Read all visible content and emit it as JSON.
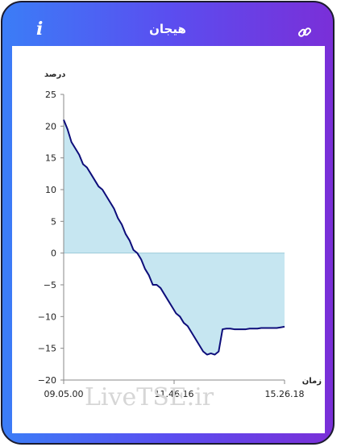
{
  "header": {
    "title": "هیجان",
    "info_icon": "i",
    "link_icon": "link-icon"
  },
  "watermark": "LiveTSE.ir",
  "colors": {
    "gradient_start": "#3b7df7",
    "gradient_end": "#7a2fd8",
    "line": "#0d0d7a",
    "area": "#c6e6f1"
  },
  "chart_data": {
    "type": "area",
    "title": "",
    "ylabel": "درصد",
    "xlabel": "زمان",
    "ylim": [
      -20,
      25
    ],
    "yticks": [
      25,
      20,
      15,
      10,
      5,
      0,
      -5,
      -10,
      -15,
      -20
    ],
    "xticks": [
      "09.05.00",
      "11.46.16",
      "15.26.18"
    ],
    "x_start": "09.05.00",
    "x_end": "15.26.18",
    "grid": false,
    "legend": "none",
    "series": [
      {
        "values": [
          21,
          19.5,
          17.5,
          16.5,
          15.5,
          14,
          13.5,
          12.5,
          11.5,
          10.5,
          10,
          9,
          8,
          7,
          5.5,
          4.5,
          3,
          2,
          0.5,
          0,
          -1,
          -2.5,
          -3.5,
          -5,
          -5,
          -5.5,
          -6.5,
          -7.5,
          -8.5,
          -9.5,
          -10,
          -11,
          -11.5,
          -12.5,
          -13.5,
          -14.5,
          -15.5,
          -16,
          -15.8,
          -16,
          -15.5,
          -12,
          -11.9,
          -11.9,
          -12,
          -12,
          -12,
          -12,
          -11.9,
          -11.9,
          -11.9,
          -11.8,
          -11.8,
          -11.8,
          -11.8,
          -11.8,
          -11.7,
          -11.6
        ]
      }
    ]
  }
}
